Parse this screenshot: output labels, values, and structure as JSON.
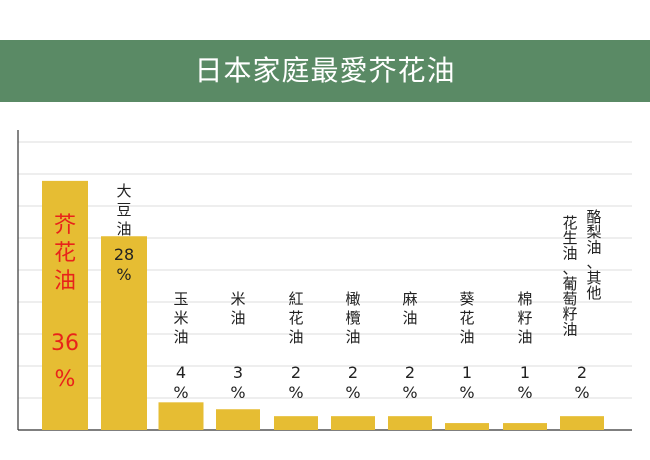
{
  "banner": {
    "title": "日本家庭最愛芥花油"
  },
  "colors": {
    "banner": "#5a8a65",
    "bar": "#e6bd33",
    "highlight_text": "#e8231a",
    "text": "#222222",
    "grid": "#dcdcdc",
    "axis": "#333333"
  },
  "chart_data": {
    "type": "bar",
    "title": "日本家庭最愛芥花油",
    "xlabel": "",
    "ylabel": "",
    "ylim": [
      0,
      40
    ],
    "grid": true,
    "legend": "none",
    "categories": [
      "芥花油",
      "大豆油",
      "玉米油",
      "米油",
      "紅花油",
      "橄欖油",
      "麻油",
      "葵花油",
      "棉籽油",
      "花生油、葡萄籽油、酪梨油、其他"
    ],
    "label_columns": [
      [
        "芥",
        "花",
        "油"
      ],
      [
        "大",
        "豆",
        "油"
      ],
      [
        "玉",
        "米",
        "油"
      ],
      [
        "米",
        "油"
      ],
      [
        "紅",
        "花",
        "油"
      ],
      [
        "橄",
        "欖",
        "油"
      ],
      [
        "麻",
        "油"
      ],
      [
        "葵",
        "花",
        "油"
      ],
      [
        "棉",
        "籽",
        "油"
      ],
      [
        [
          "花",
          "生",
          "油",
          "、",
          "葡",
          "萄",
          "籽",
          "油"
        ],
        [
          "酪",
          "梨",
          "油",
          "、",
          "其",
          "他"
        ]
      ]
    ],
    "values": [
      36,
      28,
      4,
      3,
      2,
      2,
      2,
      1,
      1,
      2
    ],
    "value_labels": [
      [
        "36",
        "%"
      ],
      [
        "28",
        "%"
      ],
      [
        "4",
        "%"
      ],
      [
        "3",
        "%"
      ],
      [
        "2",
        "%"
      ],
      [
        "2",
        "%"
      ],
      [
        "2",
        "%"
      ],
      [
        "1",
        "%"
      ],
      [
        "1",
        "%"
      ],
      [
        "2",
        "%"
      ]
    ],
    "highlight_index": 0
  }
}
